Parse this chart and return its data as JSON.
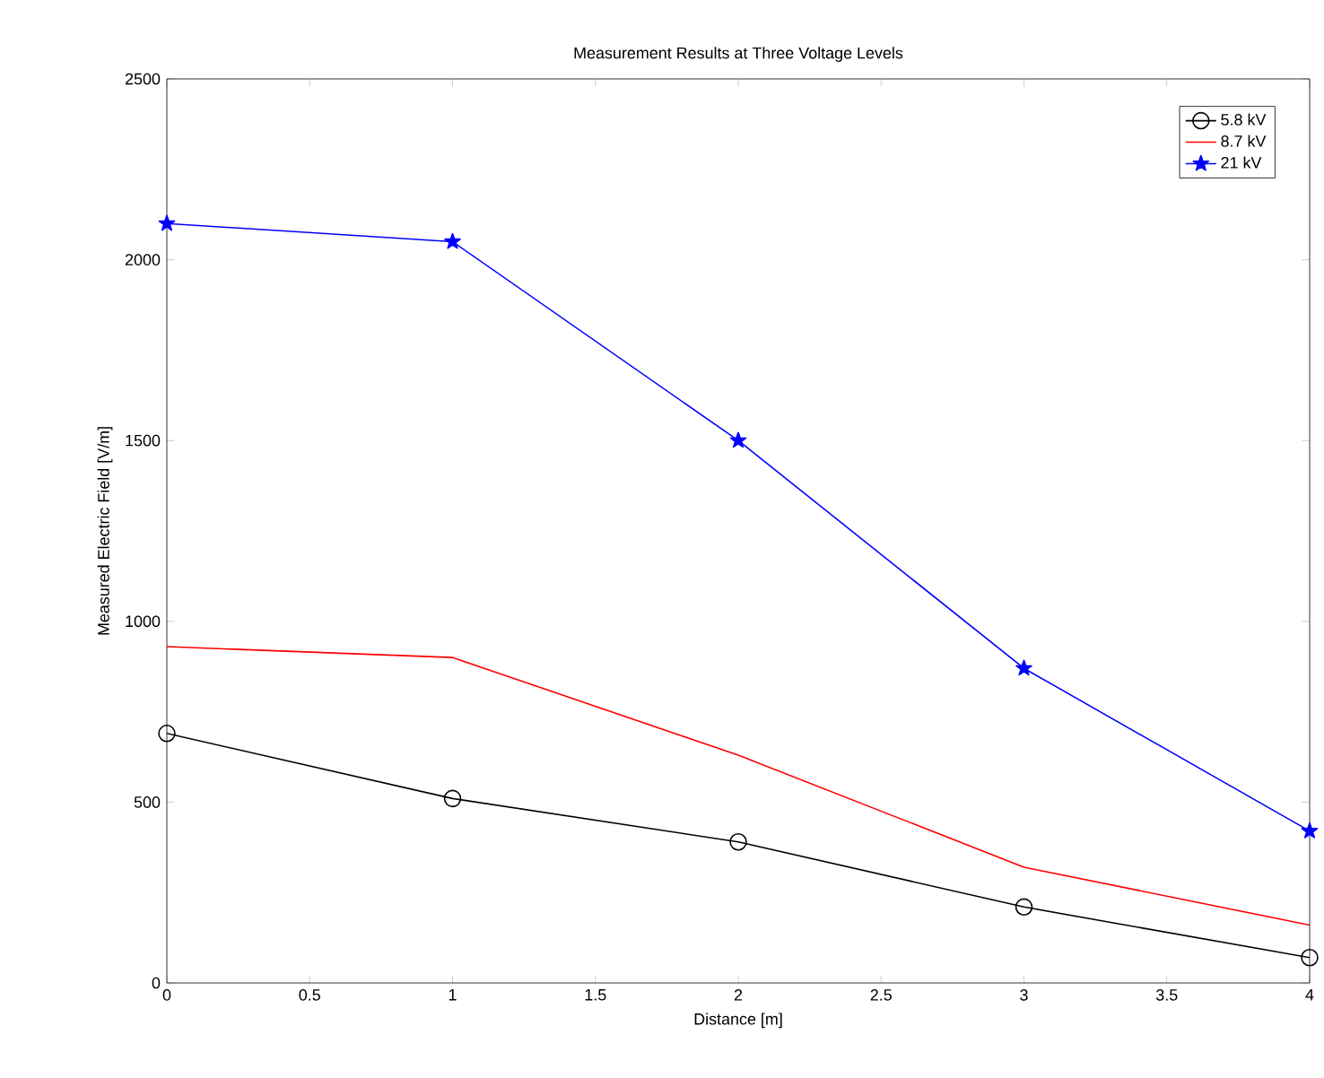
{
  "chart_data": {
    "type": "line",
    "title": "Measurement Results at Three Voltage Levels",
    "xlabel": "Distance [m]",
    "ylabel": "Measured Electric Field [V/m]",
    "x": [
      0,
      1,
      2,
      3,
      4
    ],
    "series": [
      {
        "name": "5.8 kV",
        "color": "#000000",
        "marker": "circle",
        "values": [
          690,
          510,
          390,
          210,
          70
        ]
      },
      {
        "name": "8.7 kV",
        "color": "#ff0000",
        "marker": "none",
        "values": [
          930,
          900,
          630,
          320,
          160
        ]
      },
      {
        "name": "21 kV",
        "color": "#0000ff",
        "marker": "star",
        "values": [
          2100,
          2050,
          1500,
          870,
          420
        ]
      }
    ],
    "xlim": [
      0,
      4
    ],
    "ylim": [
      0,
      2500
    ],
    "xticks": [
      0,
      0.5,
      1,
      1.5,
      2,
      2.5,
      3,
      3.5,
      4
    ],
    "yticks": [
      0,
      500,
      1000,
      1500,
      2000,
      2500
    ],
    "grid": false,
    "legend": "top right",
    "line_style": "solid"
  }
}
